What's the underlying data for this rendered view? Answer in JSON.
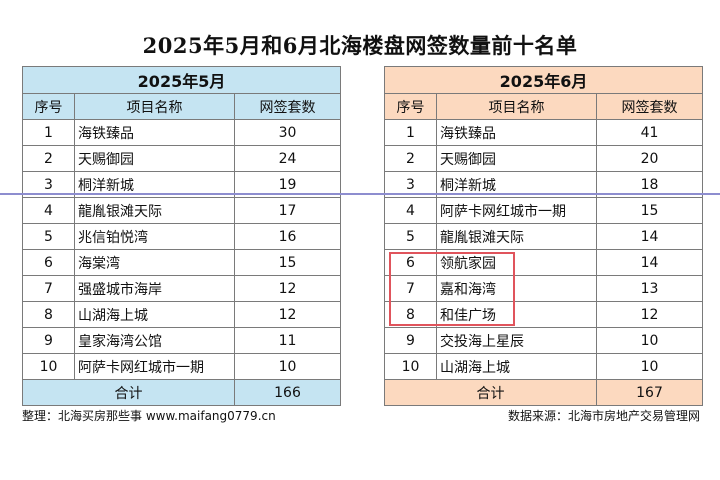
{
  "title": "2025年5月和6月北海楼盘网签数量前十名单",
  "may": {
    "month": "2025年5月",
    "headers": [
      "序号",
      "项目名称",
      "网签套数"
    ],
    "rows": [
      [
        "1",
        "海铁臻品",
        "30"
      ],
      [
        "2",
        "天赐御园",
        "24"
      ],
      [
        "3",
        "桐洋新城",
        "19"
      ],
      [
        "4",
        "龍胤银滩天际",
        "17"
      ],
      [
        "5",
        "兆信铂悦湾",
        "16"
      ],
      [
        "6",
        "海棠湾",
        "15"
      ],
      [
        "7",
        "强盛城市海岸",
        "12"
      ],
      [
        "8",
        "山湖海上城",
        "12"
      ],
      [
        "9",
        "皇家海湾公馆",
        "11"
      ],
      [
        "10",
        "阿萨卡网红城市一期",
        "10"
      ]
    ],
    "total_label": "合计",
    "total_value": "166"
  },
  "june": {
    "month": "2025年6月",
    "headers": [
      "序号",
      "项目名称",
      "网签套数"
    ],
    "rows": [
      [
        "1",
        "海铁臻品",
        "41"
      ],
      [
        "2",
        "天赐御园",
        "20"
      ],
      [
        "3",
        "桐洋新城",
        "18"
      ],
      [
        "4",
        "阿萨卡网红城市一期",
        "15"
      ],
      [
        "5",
        "龍胤银滩天际",
        "14"
      ],
      [
        "6",
        "领航家园",
        "14"
      ],
      [
        "7",
        "嘉和海湾",
        "13"
      ],
      [
        "8",
        "和佳广场",
        "12"
      ],
      [
        "9",
        "交投海上星辰",
        "10"
      ],
      [
        "10",
        "山湖海上城",
        "10"
      ]
    ],
    "total_label": "合计",
    "total_value": "167"
  },
  "footer": {
    "left": "整理：北海买房那些事 www.maifang0779.cn",
    "right": "数据来源：北海市房地产交易管理网"
  },
  "colors": {
    "may_header_bg": "#c5e4f2",
    "june_header_bg": "#fcd9bf",
    "highlight_border": "#e0545c",
    "divider_line": "#8d8dcf"
  }
}
